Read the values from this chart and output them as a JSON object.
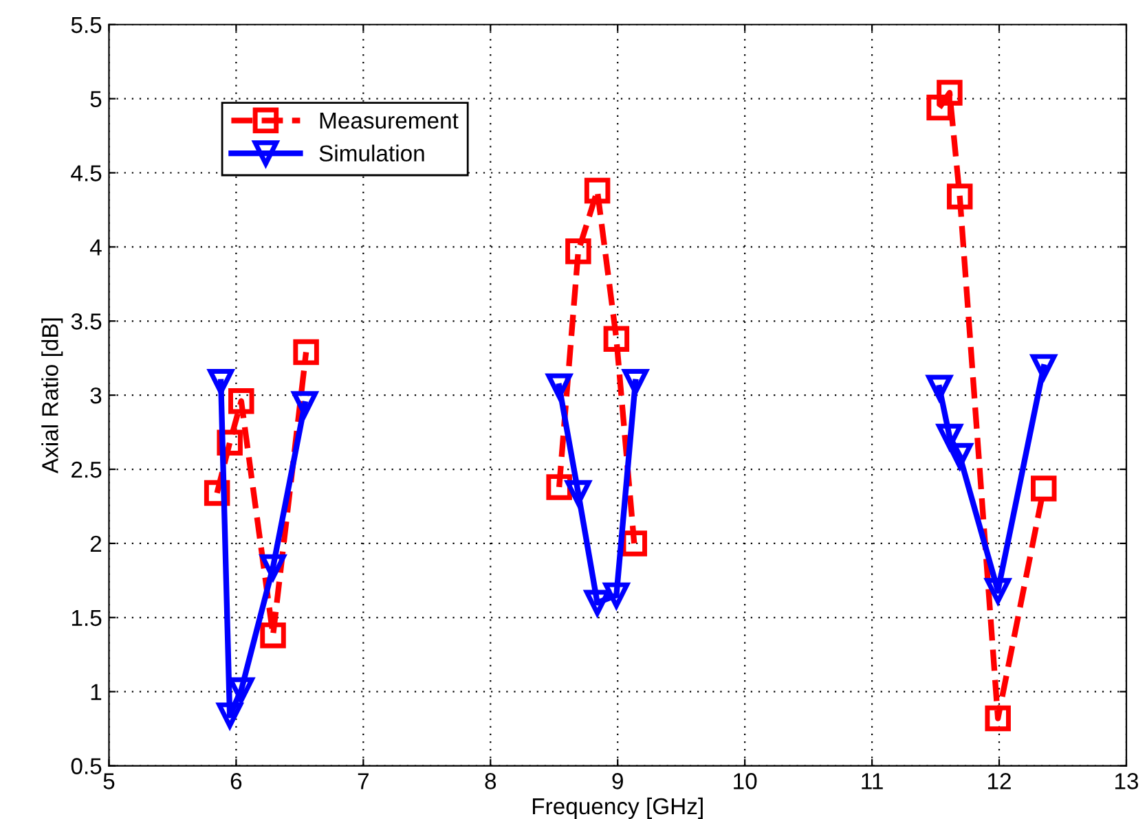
{
  "chart_data": {
    "type": "line",
    "xlabel": "Frequency [GHz]",
    "ylabel": "Axial Ratio [dB]",
    "xlim": [
      5,
      13
    ],
    "xticks": [
      5,
      6,
      7,
      8,
      9,
      10,
      11,
      12,
      13
    ],
    "ylim": [
      0.5,
      5.5
    ],
    "yticks": [
      0.5,
      1,
      1.5,
      2,
      2.5,
      3,
      3.5,
      4,
      4.5,
      5,
      5.5
    ],
    "grid": true,
    "legend": "top left",
    "series": [
      {
        "name": "Measurement",
        "color": "#ff0000",
        "marker": "square",
        "line_style": "dashed",
        "x": [
          5.85,
          5.95,
          6.04,
          6.29,
          6.55,
          7.5,
          8.54,
          8.69,
          8.84,
          8.99,
          9.13,
          10.5,
          11.53,
          11.61,
          11.69,
          11.99,
          12.35
        ],
        "values": [
          2.34,
          2.68,
          2.96,
          1.38,
          3.29,
          null,
          2.38,
          3.97,
          4.38,
          3.38,
          2.0,
          null,
          4.94,
          5.04,
          4.34,
          0.82,
          2.37
        ]
      },
      {
        "name": "Simulation",
        "color": "#0000ff",
        "marker": "triangle",
        "line_style": "solid",
        "x": [
          5.88,
          5.95,
          6.04,
          6.29,
          6.54,
          7.5,
          8.54,
          8.69,
          8.84,
          8.99,
          9.14,
          10.5,
          11.53,
          11.61,
          11.69,
          11.99,
          12.35
        ],
        "values": [
          3.09,
          0.84,
          1.01,
          1.84,
          2.94,
          null,
          3.06,
          2.34,
          1.6,
          1.65,
          3.09,
          null,
          3.05,
          2.72,
          2.59,
          1.68,
          3.19
        ]
      }
    ]
  }
}
